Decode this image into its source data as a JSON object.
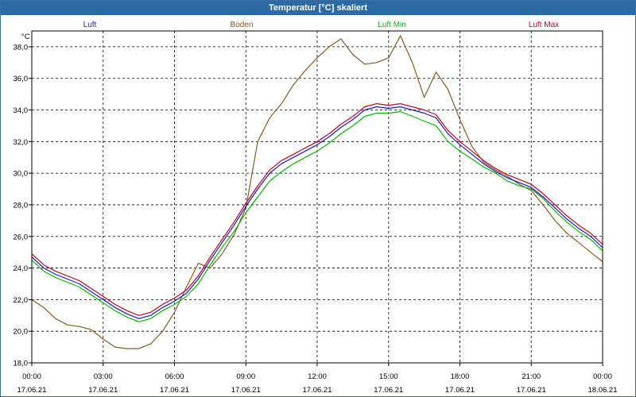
{
  "window": {
    "title": "Temperatur [°C] skaliert"
  },
  "chart_data": {
    "type": "line",
    "title": "Temperatur [°C] skaliert",
    "ylabel": "°C",
    "ylim": [
      18.0,
      39.0
    ],
    "grid": true,
    "yticks": [
      18.0,
      20.0,
      22.0,
      24.0,
      26.0,
      28.0,
      30.0,
      32.0,
      34.0,
      36.0,
      38.0
    ],
    "ytick_labels": [
      "18,0",
      "20,0",
      "22,0",
      "24,0",
      "26,0",
      "28,0",
      "30,0",
      "32,0",
      "34,0",
      "36,0",
      "38,0"
    ],
    "xlim_hours": [
      0,
      24
    ],
    "xticks": [
      {
        "hour": 0,
        "time": "00:00",
        "date": "17.06.21"
      },
      {
        "hour": 3,
        "time": "03:00",
        "date": "17.06.21"
      },
      {
        "hour": 6,
        "time": "06:00",
        "date": "17.06.21"
      },
      {
        "hour": 9,
        "time": "09:00",
        "date": "17.06.21"
      },
      {
        "hour": 12,
        "time": "12:00",
        "date": "17.06.21"
      },
      {
        "hour": 15,
        "time": "15:00",
        "date": "17.06.21"
      },
      {
        "hour": 18,
        "time": "18:00",
        "date": "17.06.21"
      },
      {
        "hour": 21,
        "time": "21:00",
        "date": "17.06.21"
      },
      {
        "hour": 24,
        "time": "00:00",
        "date": "18.06.21"
      }
    ],
    "series": [
      {
        "name": "Luft",
        "color": "#1a1acc",
        "x": [
          0,
          0.5,
          1,
          1.5,
          2,
          2.5,
          3,
          3.5,
          4,
          4.5,
          5,
          5.5,
          6,
          6.5,
          7,
          7.5,
          8,
          8.5,
          9,
          9.5,
          10,
          10.5,
          11,
          11.5,
          12,
          12.5,
          13,
          13.5,
          14,
          14.5,
          15,
          15.5,
          16,
          16.5,
          17,
          17.5,
          18,
          18.5,
          19,
          19.5,
          20,
          20.5,
          21,
          21.5,
          22,
          22.5,
          23,
          23.5,
          24
        ],
        "values": [
          24.7,
          24.0,
          23.6,
          23.3,
          23.0,
          22.5,
          22.0,
          21.5,
          21.1,
          20.8,
          21.0,
          21.5,
          21.9,
          22.4,
          23.3,
          24.5,
          25.6,
          26.7,
          27.9,
          29.0,
          30.0,
          30.6,
          31.0,
          31.4,
          31.8,
          32.3,
          32.9,
          33.4,
          34.0,
          34.2,
          34.1,
          34.2,
          34.0,
          33.8,
          33.5,
          32.5,
          31.8,
          31.2,
          30.6,
          30.1,
          29.7,
          29.4,
          29.1,
          28.5,
          27.8,
          27.1,
          26.5,
          26.0,
          25.3
        ]
      },
      {
        "name": "Boden",
        "color": "#8b5a1b",
        "x": [
          0,
          0.5,
          1,
          1.5,
          2,
          2.5,
          3,
          3.5,
          4,
          4.5,
          5,
          5.5,
          6,
          6.5,
          7,
          7.5,
          8,
          8.5,
          9,
          9.5,
          10,
          10.5,
          11,
          11.5,
          12,
          12.5,
          13,
          13.5,
          14,
          14.5,
          15,
          15.5,
          16,
          16.5,
          17,
          17.5,
          18,
          18.5,
          19,
          19.5,
          20,
          20.5,
          21,
          21.5,
          22,
          22.5,
          23,
          23.5,
          24
        ],
        "values": [
          22.0,
          21.5,
          20.8,
          20.4,
          20.3,
          20.1,
          19.5,
          19.0,
          18.9,
          18.9,
          19.2,
          20.0,
          21.2,
          22.8,
          24.3,
          24.0,
          24.9,
          26.1,
          27.8,
          32.0,
          33.5,
          34.4,
          35.6,
          36.5,
          37.3,
          38.0,
          38.5,
          37.5,
          36.9,
          37.0,
          37.3,
          38.7,
          37.0,
          34.8,
          36.4,
          35.3,
          33.4,
          31.7,
          30.7,
          30.2,
          29.8,
          29.3,
          28.9,
          28.0,
          27.0,
          26.2,
          25.6,
          25.0,
          24.4
        ]
      },
      {
        "name": "Luft Min",
        "color": "#00bb00",
        "x": [
          0,
          0.5,
          1,
          1.5,
          2,
          2.5,
          3,
          3.5,
          4,
          4.5,
          5,
          5.5,
          6,
          6.5,
          7,
          7.5,
          8,
          8.5,
          9,
          9.5,
          10,
          10.5,
          11,
          11.5,
          12,
          12.5,
          13,
          13.5,
          14,
          14.5,
          15,
          15.5,
          16,
          16.5,
          17,
          17.5,
          18,
          18.5,
          19,
          19.5,
          20,
          20.5,
          21,
          21.5,
          22,
          22.5,
          23,
          23.5,
          24
        ],
        "values": [
          24.5,
          23.8,
          23.4,
          23.1,
          22.8,
          22.3,
          21.8,
          21.3,
          20.9,
          20.6,
          20.8,
          21.3,
          21.7,
          22.2,
          23.0,
          24.2,
          25.3,
          26.3,
          27.5,
          28.5,
          29.5,
          30.1,
          30.6,
          31.0,
          31.4,
          31.9,
          32.5,
          33.0,
          33.6,
          33.8,
          33.8,
          33.9,
          33.6,
          33.3,
          33.0,
          32.0,
          31.4,
          30.9,
          30.4,
          30.0,
          29.5,
          29.2,
          29.0,
          28.4,
          27.6,
          26.9,
          26.3,
          25.8,
          25.1
        ]
      },
      {
        "name": "Luft Max",
        "color": "#cc0022",
        "x": [
          0,
          0.5,
          1,
          1.5,
          2,
          2.5,
          3,
          3.5,
          4,
          4.5,
          5,
          5.5,
          6,
          6.5,
          7,
          7.5,
          8,
          8.5,
          9,
          9.5,
          10,
          10.5,
          11,
          11.5,
          12,
          12.5,
          13,
          13.5,
          14,
          14.5,
          15,
          15.5,
          16,
          16.5,
          17,
          17.5,
          18,
          18.5,
          19,
          19.5,
          20,
          20.5,
          21,
          21.5,
          22,
          22.5,
          23,
          23.5,
          24
        ],
        "values": [
          24.9,
          24.2,
          23.8,
          23.5,
          23.2,
          22.7,
          22.2,
          21.7,
          21.3,
          21.0,
          21.2,
          21.7,
          22.1,
          22.6,
          23.5,
          24.7,
          25.8,
          26.9,
          28.1,
          29.2,
          30.2,
          30.8,
          31.2,
          31.6,
          32.0,
          32.5,
          33.1,
          33.6,
          34.2,
          34.4,
          34.3,
          34.4,
          34.2,
          34.0,
          33.7,
          32.7,
          32.0,
          31.4,
          30.8,
          30.3,
          29.9,
          29.6,
          29.3,
          28.7,
          28.0,
          27.3,
          26.7,
          26.2,
          25.5
        ]
      }
    ]
  }
}
